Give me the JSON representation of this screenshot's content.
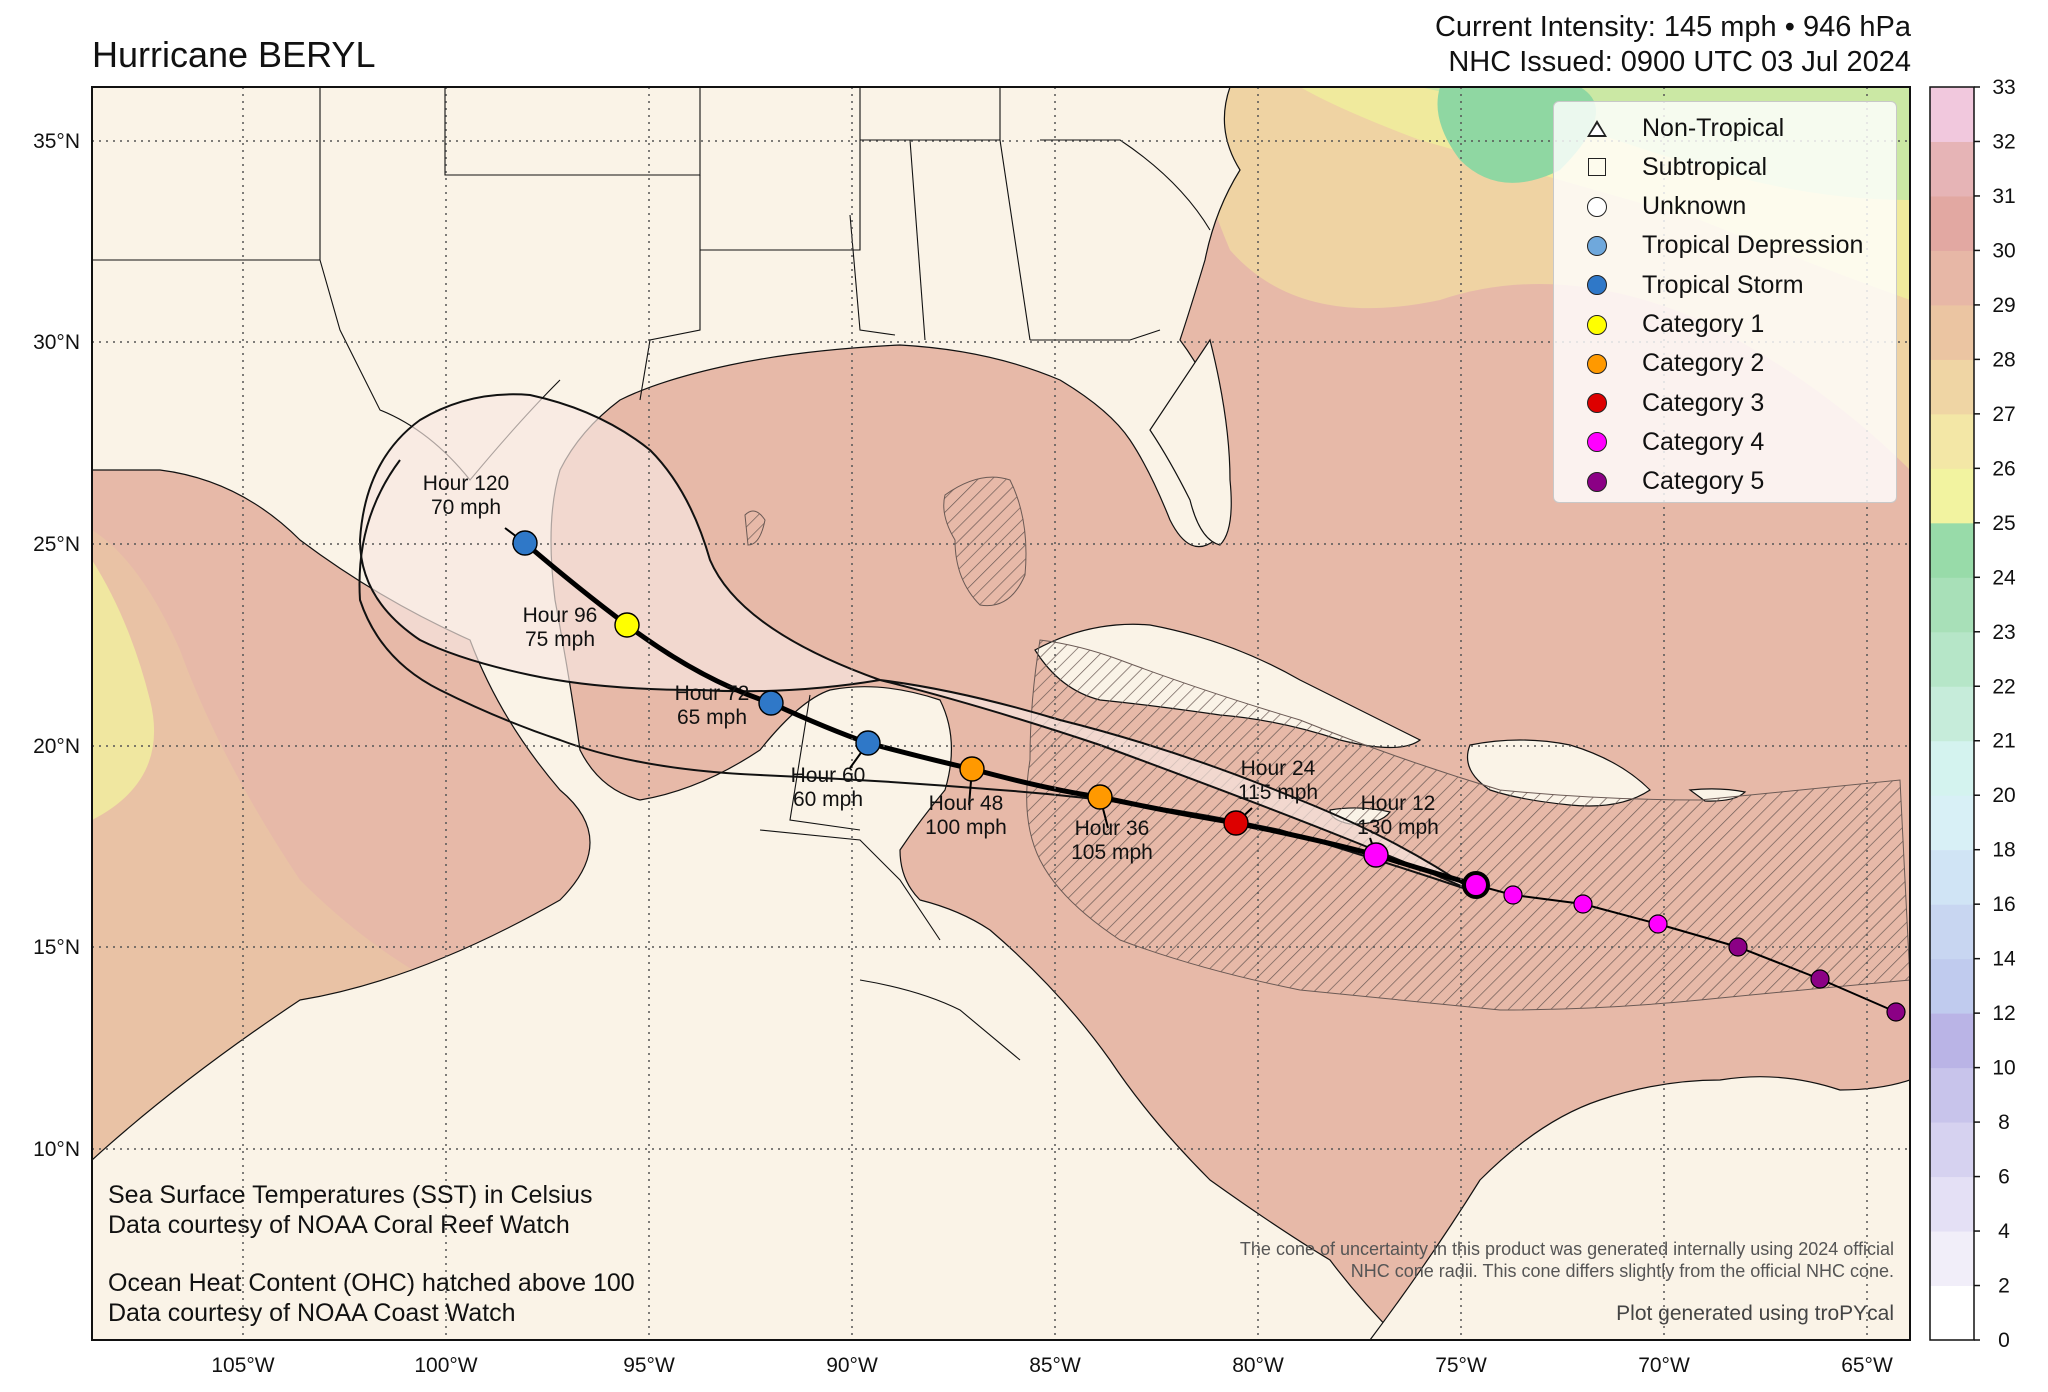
{
  "title": "Hurricane BERYL",
  "intensity_line": "Current Intensity: 145 mph • 946 hPa",
  "issued_line": "NHC Issued: 0900 UTC 03 Jul 2024",
  "lon_ticks": [
    "105°W",
    "100°W",
    "95°W",
    "90°W",
    "85°W",
    "80°W",
    "75°W",
    "70°W",
    "65°W"
  ],
  "lat_ticks": [
    "35°N",
    "30°N",
    "25°N",
    "20°N",
    "15°N",
    "10°N"
  ],
  "legend": [
    {
      "label": "Non-Tropical",
      "symbol": "triangle",
      "color": "#ffffff"
    },
    {
      "label": "Subtropical",
      "symbol": "square",
      "color": "#ffffff"
    },
    {
      "label": "Unknown",
      "symbol": "circle",
      "color": "#ffffff"
    },
    {
      "label": "Tropical Depression",
      "symbol": "circle",
      "color": "#6fa8dc"
    },
    {
      "label": "Tropical Storm",
      "symbol": "circle",
      "color": "#2f78c8"
    },
    {
      "label": "Category 1",
      "symbol": "circle",
      "color": "#ffff00"
    },
    {
      "label": "Category 2",
      "symbol": "circle",
      "color": "#ff9900"
    },
    {
      "label": "Category 3",
      "symbol": "circle",
      "color": "#dd0000"
    },
    {
      "label": "Category 4",
      "symbol": "circle",
      "color": "#ff00ff"
    },
    {
      "label": "Category 5",
      "symbol": "circle",
      "color": "#8b0085"
    }
  ],
  "forecast_points": [
    {
      "hour_label": "Hour 12",
      "wind": "130 mph",
      "category": "Category 4",
      "color": "#ff00ff"
    },
    {
      "hour_label": "Hour 24",
      "wind": "115 mph",
      "category": "Category 3",
      "color": "#dd0000"
    },
    {
      "hour_label": "Hour 36",
      "wind": "105 mph",
      "category": "Category 2",
      "color": "#ff9900"
    },
    {
      "hour_label": "Hour 48",
      "wind": "100 mph",
      "category": "Category 2",
      "color": "#ff9900"
    },
    {
      "hour_label": "Hour 60",
      "wind": "60 mph",
      "category": "Tropical Storm",
      "color": "#2f78c8"
    },
    {
      "hour_label": "Hour 72",
      "wind": "65 mph",
      "category": "Tropical Storm",
      "color": "#2f78c8"
    },
    {
      "hour_label": "Hour 96",
      "wind": "75 mph",
      "category": "Category 1",
      "color": "#ffff00"
    },
    {
      "hour_label": "Hour 120",
      "wind": "70 mph",
      "category": "Tropical Storm",
      "color": "#2f78c8"
    }
  ],
  "past_track_colors": [
    "#8b0085",
    "#8b0085",
    "#8b0085",
    "#ff00ff",
    "#ff00ff",
    "#ff00ff"
  ],
  "colorbar": {
    "ticks": [
      "0",
      "2",
      "4",
      "6",
      "8",
      "10",
      "12",
      "14",
      "16",
      "18",
      "20",
      "21",
      "22",
      "23",
      "24",
      "25",
      "26",
      "27",
      "28",
      "29",
      "30",
      "31",
      "32",
      "33"
    ]
  },
  "info": {
    "sst_line1": "Sea Surface Temperatures (SST) in Celsius",
    "sst_line2": "Data courtesy of NOAA Coral Reef Watch",
    "ohc_line1": "Ocean Heat Content (OHC) hatched above 100",
    "ohc_line2": "Data courtesy of NOAA Coast Watch"
  },
  "cone_note_line1": "The cone of uncertainty in this product was generated internally using 2024 official",
  "cone_note_line2": "NHC cone radii. This cone differs slightly from the official NHC cone.",
  "credit": "Plot generated using troPYcal",
  "colors": {
    "land": "#faf3e7",
    "sst_warm": "#e7b7a6",
    "sst_hot": "#dfa397",
    "sst_mid": "#efd2a4",
    "sst_cool": "#f2ec9e",
    "sst_green": "#8ed8a3",
    "cone_fill": "#f7e6df"
  }
}
